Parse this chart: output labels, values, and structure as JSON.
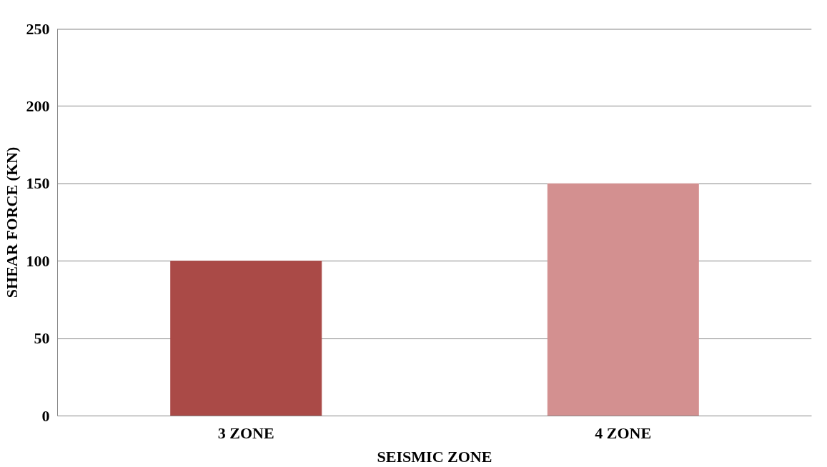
{
  "chart_data": {
    "type": "bar",
    "xlabel": "SEISMIC ZONE",
    "ylabel": "SHEAR FORCE (KN)",
    "categories": [
      "3 ZONE",
      "4 ZONE"
    ],
    "values": [
      100,
      150
    ],
    "colors": [
      "#aa4a47",
      "#d39090"
    ],
    "ylim": [
      0,
      250
    ],
    "yticks": [
      0,
      50,
      100,
      150,
      200,
      250
    ],
    "grid": "y"
  }
}
